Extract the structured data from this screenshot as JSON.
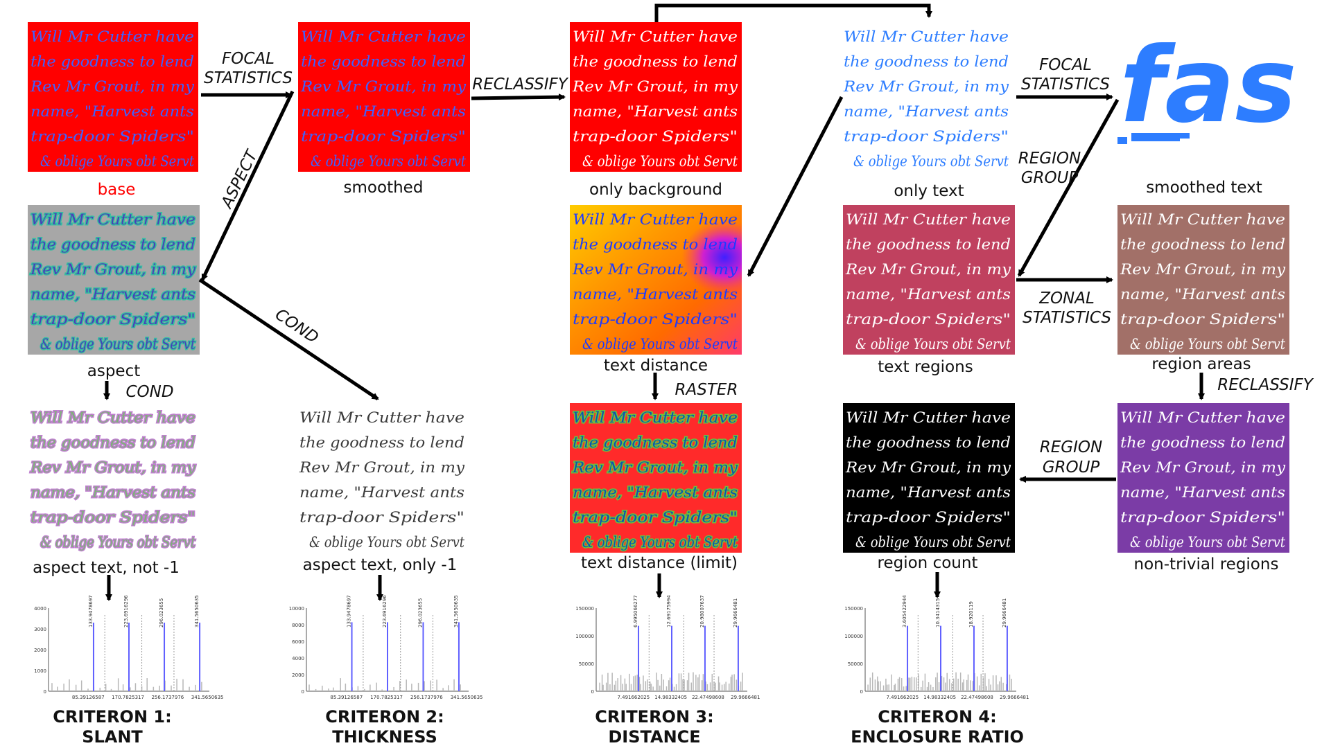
{
  "handwriting_lines": [
    "Will Mr Cutter have",
    "the goodness to lend",
    "Rev Mr Grout, in my",
    "name, \"Harvest ants",
    "trap-door Spiders\"",
    "& oblige Yours obt Servt"
  ],
  "smoothed_text_fragment": "fas",
  "colors": {
    "red": "#ff0000",
    "blue_ink": "#3f62ff",
    "light_blue_ink": "#2d7dff",
    "gray": "#a7a7a7",
    "crimson": "#c0415f",
    "mauve": "#a27068",
    "purple": "#7b3ca6",
    "black": "#000000",
    "histogram_line": "#6060ff"
  },
  "nodes": {
    "base": "base",
    "smoothed": "smoothed",
    "only_background": "only background",
    "only_text": "only text",
    "smoothed_text": "smoothed text",
    "aspect": "aspect",
    "text_distance": "text distance",
    "text_regions": "text regions",
    "region_areas": "region areas",
    "aspect_text_not": "aspect text, not -1",
    "aspect_text_only": "aspect text, only -1",
    "text_distance_limit": "text distance (limit)",
    "region_count": "region count",
    "non_trivial_regions": "non-trivial regions"
  },
  "operations": {
    "focal1_a": "FOCAL",
    "focal1_b": "STATISTICS",
    "reclassify1": "RECLASSIFY",
    "focal2_a": "FOCAL",
    "focal2_b": "STATISTICS",
    "region_group1_a": "REGION",
    "region_group1_b": "GROUP",
    "aspect": "ASPECT",
    "cond1": "COND",
    "cond2": "COND",
    "raster": "RASTER",
    "zonal_a": "ZONAL",
    "zonal_b": "STATISTICS",
    "reclassify2": "RECLASSIFY",
    "region_group2_a": "REGION",
    "region_group2_b": "GROUP"
  },
  "criteria": [
    {
      "line1": "CRITERON 1:",
      "line2": "SLANT"
    },
    {
      "line1": "CRITERON 2:",
      "line2": "THICKNESS"
    },
    {
      "line1": "CRITERON 3:",
      "line2": "DISTANCE"
    },
    {
      "line1": "CRITERON 4:",
      "line2": "ENCLOSURE RATIO"
    }
  ],
  "chart_data": [
    {
      "type": "bar",
      "ylim": [
        0,
        4000
      ],
      "yticks": [
        "4000",
        "3000",
        "2000",
        "1000",
        "0"
      ],
      "xticks": [
        "85.39126587",
        "170.7825317",
        "256.1737976",
        "341.5650635"
      ],
      "peak_labels": [
        "133.9478697",
        "223.6916296",
        "296.023655",
        "341.5650635"
      ],
      "peaks": [
        3300,
        3300,
        3300,
        3300
      ]
    },
    {
      "type": "bar",
      "ylim": [
        0,
        10000
      ],
      "yticks": [
        "10000",
        "8000",
        "6000",
        "4000",
        "2000",
        "0"
      ],
      "xticks": [
        "85.39126587",
        "170.7825317",
        "256.1737976",
        "341.5650635"
      ],
      "peak_labels": [
        "133.9478697",
        "223.6916296",
        "296.023655",
        "341.5650635"
      ],
      "peaks": [
        8300,
        8300,
        8300,
        8300
      ]
    },
    {
      "type": "bar",
      "ylim": [
        0,
        150000
      ],
      "yticks": [
        "150000",
        "100000",
        "50000",
        "0"
      ],
      "xticks": [
        "7.491662025",
        "14.98332405",
        "22.47498608",
        "29.9666481"
      ],
      "peak_labels": [
        "6.995066277",
        "12.69175994",
        "20.98007637",
        "29.9666481"
      ],
      "peaks": [
        118000,
        118000,
        118000,
        118000
      ]
    },
    {
      "type": "bar",
      "ylim": [
        0,
        150000
      ],
      "yticks": [
        "150000",
        "100000",
        "50000",
        "0"
      ],
      "xticks": [
        "7.491662025",
        "14.98332405",
        "22.47498608",
        "29.9666481"
      ],
      "peak_labels": [
        "3.605422944",
        "10.3414315",
        "18.920119",
        "29.9666481"
      ],
      "peaks": [
        118000,
        118000,
        118000,
        118000
      ]
    }
  ]
}
